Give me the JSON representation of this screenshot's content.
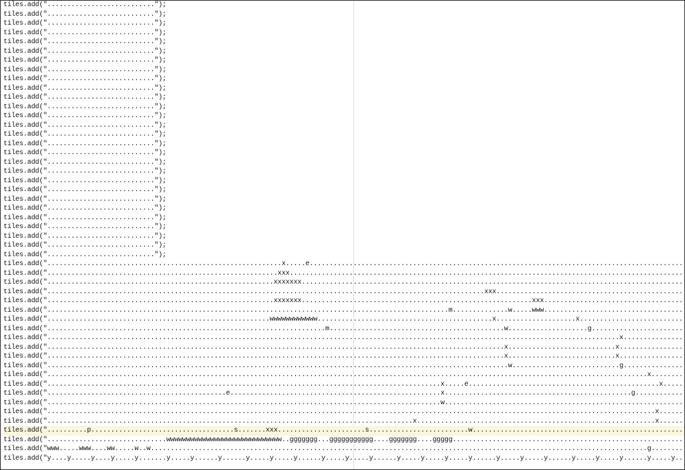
{
  "editor": {
    "highlighted_line": 46,
    "lines": [
      "tiles.add(\"...........................\");",
      "tiles.add(\"...........................\");",
      "tiles.add(\"...........................\");",
      "tiles.add(\"...........................\");",
      "tiles.add(\"...........................\");",
      "tiles.add(\"...........................\");",
      "tiles.add(\"...........................\");",
      "tiles.add(\"...........................\");",
      "tiles.add(\"...........................\");",
      "tiles.add(\"...........................\");",
      "tiles.add(\"...........................\");",
      "tiles.add(\"...........................\");",
      "tiles.add(\"...........................\");",
      "tiles.add(\"...........................\");",
      "tiles.add(\"...........................\");",
      "tiles.add(\"...........................\");",
      "tiles.add(\"...........................\");",
      "tiles.add(\"...........................\");",
      "tiles.add(\"...........................\");",
      "tiles.add(\"...........................\");",
      "tiles.add(\"...........................\");",
      "tiles.add(\"...........................\");",
      "tiles.add(\"...........................\");",
      "tiles.add(\"...........................\");",
      "tiles.add(\"...........................\");",
      "tiles.add(\"...........................\");",
      "tiles.add(\"...........................\");",
      "tiles.add(\"...........................\");",
      "tiles.add(\"...........................................................x.....e......................................................................................................................\");",
      "tiles.add(\"..........................................................xxx.........................................................................................................................\");",
      "tiles.add(\".........................................................xxxxxxx......................................................................................................................\");",
      "tiles.add(\"..............................................................................................................xxx.....................................................................\");",
      "tiles.add(\".........................................................xxxxxxx..........................................................xxx.....................................................................\");",
      "tiles.add(\".....................................................................................................m..............w.....www......................................................\");",
      "tiles.add(\"........................................................wwwwwwwwwwww............................................x....................x.....................................................\");",
      "tiles.add(\"......................................................................m............................................w....................g..........................................................\");",
      "tiles.add(\"................................................................................................................................................x....................x............o..\");",
      "tiles.add(\"...................................................................................................................x...........................x....................m..........................\");",
      "tiles.add(\"...................................................................................................................x...........................x....................x....gggg.........\");",
      "tiles.add(\"....................................................................................................................w...........................g....................x.........gggggggg\");",
      "tiles.add(\".......................................................................................................................................................x....................x.....................\");",
      "tiles.add(\"...................................................................................................x.....e................................................x....................x.....................\");",
      "tiles.add(\".............................................e.....................................................x...............................................g....................x.....................\");",
      "tiles.add(\"...................................................................................................w..................................................................x......................\");",
      "tiles.add(\".........................................................................................................................................................x...............x......................\");",
      "tiles.add(\"............................................................................................x............................................................x...............x......................\");",
      "tiles.add(\"..........p....................................s.......xxx......................s.........................w........................................................g...............x......................\");",
      "tiles.add(\"..............................wwwwwwwwwwwwwwwwwwwwwwwwwwwww..ggggggg...ggggggggggg....ggggggg....ggggg.............................................................x..x......................\");",
      "tiles.add(\"www.....www....ww.....w..w.............................................................................................................................g........................\");",
      "tiles.add(\"y....y.....y....y.....y.......y.....y......y......y.....y.....y......y.....y.....y......y.....y.....y.....y......y.....y.....y......y.....y.....y......y.....y.....y......y......y\");"
    ]
  }
}
